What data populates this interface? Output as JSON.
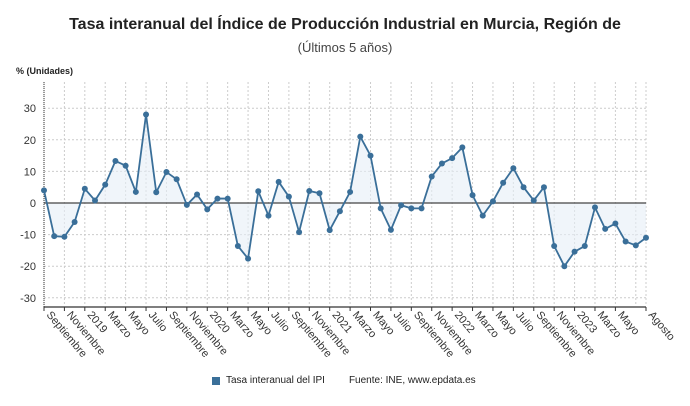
{
  "title": "Tasa interanual del Índice de Producción Industrial en Murcia, Región de",
  "subtitle": "(Últimos 5 años)",
  "chart_data": {
    "type": "line",
    "title": "Tasa interanual del Índice de Producción Industrial en Murcia, Región de",
    "subtitle": "(Últimos 5 años)",
    "ylabel": "% (Unidades)",
    "xlabel": "",
    "ylim": [
      -33,
      38
    ],
    "yticks": [
      30,
      20,
      10,
      0,
      -10,
      -20,
      -30
    ],
    "grid": true,
    "legend_position": "bottom",
    "x_tick_labels": [
      "Septiembre",
      "Noviembre",
      "2019",
      "Marzo",
      "Mayo",
      "Julio",
      "Septiembre",
      "Noviembre",
      "2020",
      "Marzo",
      "Mayo",
      "Julio",
      "Septiembre",
      "Noviembre",
      "2021",
      "Marzo",
      "Mayo",
      "Julio",
      "Septiembre",
      "Noviembre",
      "2022",
      "Marzo",
      "Mayo",
      "Julio",
      "Septiembre",
      "Noviembre",
      "2023",
      "Marzo",
      "Mayo",
      "Agosto"
    ],
    "x_tick_indices": [
      0,
      2,
      4,
      6,
      8,
      10,
      12,
      14,
      16,
      18,
      20,
      22,
      24,
      26,
      28,
      30,
      32,
      34,
      36,
      38,
      40,
      42,
      44,
      46,
      48,
      50,
      52,
      54,
      56,
      59
    ],
    "series": [
      {
        "name": "Tasa interanual del IPI",
        "color": "#3a6f99",
        "values": [
          4,
          -10.5,
          -10.7,
          -6,
          4.5,
          0.8,
          5.8,
          13.3,
          11.8,
          3.5,
          28,
          3.4,
          9.8,
          7.5,
          -0.6,
          2.7,
          -2,
          1.4,
          1.4,
          -13.6,
          -17.6,
          3.7,
          -4,
          6.7,
          2,
          -9.2,
          3.8,
          3.1,
          -8.6,
          -2.6,
          3.5,
          21,
          15,
          -1.7,
          -8.5,
          -0.7,
          -1.7,
          -1.7,
          8.4,
          12.5,
          14.2,
          17.6,
          2.5,
          -4,
          0.5,
          6.4,
          11,
          5,
          0.8,
          5,
          -13.6,
          -20,
          -15.4,
          -13.6,
          -1.4,
          -8.2,
          -6.5,
          -12.2,
          -13.4,
          -11
        ]
      }
    ]
  },
  "legend": {
    "series_label": "Tasa interanual del IPI",
    "source": "Fuente: INE, www.epdata.es"
  }
}
